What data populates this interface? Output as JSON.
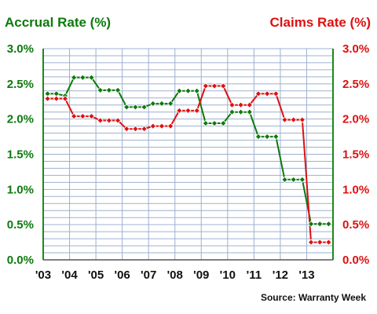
{
  "chart_data": {
    "type": "line",
    "title_left": "Accrual Rate (%)",
    "title_right": "Claims Rate (%)",
    "source": "Source: Warranty Week",
    "x_labels": [
      "'03",
      "'04",
      "'05",
      "'06",
      "'07",
      "'08",
      "'09",
      "'10",
      "'11",
      "'12",
      "'13"
    ],
    "y_ticks_left": [
      "3.0%",
      "2.5%",
      "2.0%",
      "1.5%",
      "1.0%",
      "0.5%",
      "0.0%"
    ],
    "y_ticks_right": [
      "3.0%",
      "2.5%",
      "2.0%",
      "1.5%",
      "1.0%",
      "0.5%",
      "0.0%"
    ],
    "ylim": [
      0,
      3.0
    ],
    "grid": true,
    "colors": {
      "accrual": "#0c7a0c",
      "claims": "#dd1111",
      "grid": "#9db0cf",
      "axis": "#1a8a1a"
    },
    "series": [
      {
        "name": "Accrual Rate (%)",
        "axis": "left",
        "values": [
          2.36,
          2.36,
          2.33,
          2.59,
          2.59,
          2.59,
          2.41,
          2.41,
          2.41,
          2.17,
          2.17,
          2.17,
          2.22,
          2.22,
          2.22,
          2.4,
          2.4,
          2.4,
          1.94,
          1.94,
          1.94,
          2.1,
          2.1,
          2.1,
          1.75,
          1.75,
          1.75,
          1.14,
          1.14,
          1.14,
          0.51,
          0.51,
          0.51
        ]
      },
      {
        "name": "Claims Rate (%)",
        "axis": "right",
        "values": [
          2.29,
          2.29,
          2.29,
          2.04,
          2.04,
          2.04,
          1.98,
          1.98,
          1.98,
          1.86,
          1.86,
          1.86,
          1.9,
          1.9,
          1.9,
          2.12,
          2.12,
          2.12,
          2.47,
          2.47,
          2.47,
          2.2,
          2.2,
          2.2,
          2.36,
          2.36,
          2.36,
          1.99,
          1.99,
          1.99,
          0.25,
          0.25,
          0.25
        ]
      }
    ]
  }
}
